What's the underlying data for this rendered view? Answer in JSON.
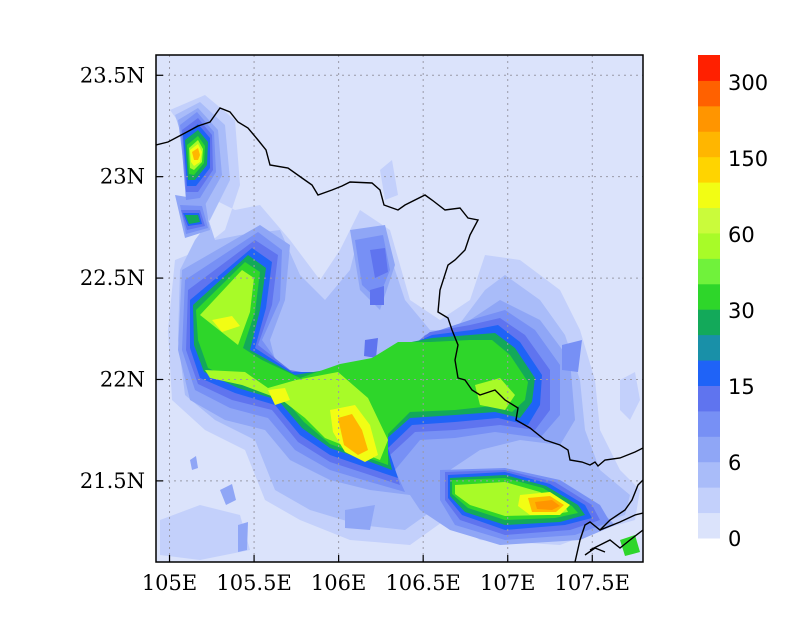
{
  "map": {
    "x_ticks": [
      "105E",
      "105.5E",
      "106E",
      "106.5E",
      "107E",
      "107.5E"
    ],
    "x_tick_values": [
      105,
      105.5,
      106,
      106.5,
      107,
      107.5
    ],
    "y_ticks": [
      "23.5N",
      "23N",
      "22.5N",
      "22N",
      "21.5N"
    ],
    "y_tick_values": [
      23.5,
      23,
      22.5,
      22,
      21.5
    ],
    "lon_range": [
      104.92,
      107.8
    ],
    "lat_range": [
      21.1,
      23.6
    ],
    "grid": "dotted",
    "background_color": "#dbe3fb"
  },
  "colorbar": {
    "labels": [
      "300",
      "150",
      "60",
      "30",
      "15",
      "6",
      "0"
    ],
    "colors": [
      "#dbe3fb",
      "#c3d0fb",
      "#a9bcf9",
      "#8fa6f6",
      "#7790f5",
      "#5f74ef",
      "#1f63f7",
      "#1990a8",
      "#13a95a",
      "#2ed62a",
      "#70f23b",
      "#a8fb28",
      "#cafb3b",
      "#f2fd14",
      "#ffd400",
      "#ffb600",
      "#ff9500",
      "#ff6100",
      "#ff2000"
    ]
  },
  "coastline_color": "#000000"
}
